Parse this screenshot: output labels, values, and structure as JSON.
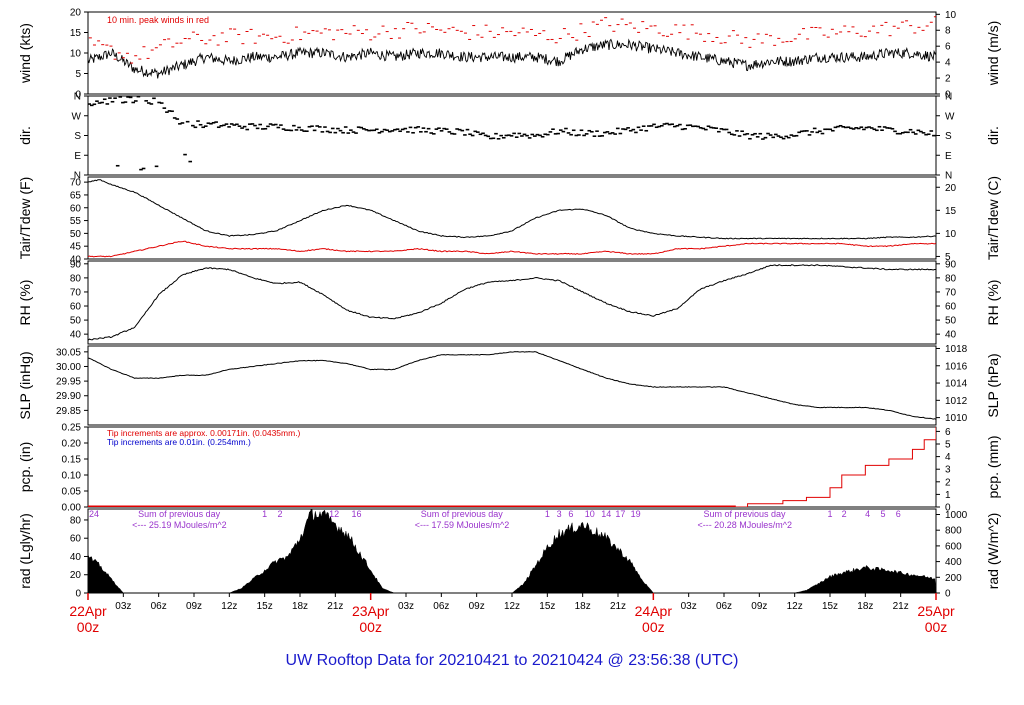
{
  "footer": {
    "title_prefix": "UW Rooftop Data for",
    "start": "20210421",
    "to": "to",
    "end": "20210424",
    "at": "@",
    "time": "23:56:38",
    "tz": "(UTC)"
  },
  "colors": {
    "frame": "#000000",
    "red": "#e00000",
    "blue": "#0000cc",
    "purple": "#9933cc"
  },
  "time_axis": {
    "hour_ticks": [
      "03z",
      "06z",
      "09z",
      "12z",
      "15z",
      "18z",
      "21z"
    ],
    "day_labels": [
      {
        "date": "22Apr",
        "hour": "00z",
        "t": 0
      },
      {
        "date": "23Apr",
        "hour": "00z",
        "t": 24
      },
      {
        "date": "24Apr",
        "hour": "00z",
        "t": 48
      },
      {
        "date": "25Apr",
        "hour": "00z",
        "t": 72
      }
    ],
    "range_hours": [
      0,
      72
    ]
  },
  "chart_data": [
    {
      "type": "line",
      "id": "wind",
      "ylabel_left": "wind (kts)",
      "ylabel_right": "wind (m/s)",
      "ylim": [
        0,
        20
      ],
      "left_ticks": [
        "0",
        "5",
        "10",
        "15",
        "20"
      ],
      "right_ticks": [
        "0",
        "2",
        "4",
        "6",
        "8",
        "10"
      ],
      "annotation": "10 min. peak winds in red",
      "series": [
        {
          "name": "wind",
          "color": "#000000",
          "x": [
            0,
            2,
            4,
            6,
            8,
            10,
            12,
            14,
            16,
            18,
            20,
            22,
            24,
            26,
            28,
            30,
            32,
            34,
            36,
            38,
            40,
            42,
            44,
            46,
            48,
            50,
            52,
            54,
            56,
            58,
            60,
            62,
            64,
            66,
            68,
            70,
            72
          ],
          "y": [
            8,
            10,
            6,
            5,
            7,
            9,
            8,
            9,
            9,
            10,
            10,
            9,
            10,
            9,
            10,
            10,
            9,
            9,
            9,
            9,
            8,
            11,
            12,
            12,
            11,
            10,
            9,
            8,
            7,
            8,
            8,
            9,
            9,
            9,
            10,
            10,
            9
          ]
        },
        {
          "name": "10 min. peak winds",
          "color": "#e00000",
          "x": [
            0,
            4,
            8,
            12,
            16,
            20,
            24,
            28,
            32,
            36,
            40,
            44,
            48,
            52,
            56,
            60,
            64,
            68,
            72
          ],
          "y": [
            12,
            9,
            13,
            14,
            14,
            15,
            15,
            16,
            15,
            15,
            14,
            17,
            16,
            15,
            13,
            14,
            15,
            16,
            17
          ]
        }
      ]
    },
    {
      "type": "scatter",
      "id": "dir",
      "ylabel_left": "dir.",
      "ylabel_right": "dir.",
      "ylim": [
        0,
        360
      ],
      "left_ticks": [
        "N",
        "E",
        "S",
        "W",
        "N"
      ],
      "right_ticks": [
        "N",
        "E",
        "S",
        "W",
        "N"
      ],
      "series": [
        {
          "name": "direction",
          "color": "#000000",
          "x": [
            0,
            2,
            4,
            6,
            8,
            10,
            12,
            14,
            16,
            18,
            20,
            22,
            24,
            26,
            28,
            30,
            32,
            34,
            36,
            38,
            40,
            42,
            44,
            46,
            48,
            50,
            52,
            54,
            56,
            58,
            60,
            62,
            64,
            66,
            68,
            70,
            72
          ],
          "y": [
            320,
            340,
            345,
            335,
            235,
            230,
            225,
            220,
            220,
            215,
            210,
            205,
            205,
            210,
            205,
            200,
            195,
            170,
            185,
            180,
            200,
            190,
            190,
            205,
            220,
            225,
            215,
            200,
            180,
            175,
            185,
            200,
            210,
            215,
            205,
            200,
            185
          ]
        }
      ]
    },
    {
      "type": "line",
      "id": "temp",
      "ylabel_left": "Tair/Tdew (F)",
      "ylabel_right": "Tair/Tdew (C)",
      "ylim": [
        40,
        72
      ],
      "left_ticks": [
        "40",
        "45",
        "50",
        "55",
        "60",
        "65",
        "70"
      ],
      "right_ticks": [
        "5",
        "10",
        "15",
        "20"
      ],
      "series": [
        {
          "name": "Tair",
          "color": "#000000",
          "x": [
            0,
            1,
            2,
            4,
            6,
            8,
            10,
            12,
            14,
            16,
            18,
            20,
            22,
            24,
            26,
            28,
            30,
            32,
            34,
            36,
            38,
            40,
            42,
            44,
            46,
            48,
            50,
            52,
            54,
            56,
            58,
            60,
            62,
            64,
            66,
            68,
            70,
            72
          ],
          "y": [
            70,
            71,
            69,
            66,
            61,
            56,
            51,
            49,
            49.5,
            51,
            55,
            59,
            61,
            59,
            55,
            51,
            49,
            48.5,
            49,
            51,
            56,
            59,
            59.5,
            57,
            52,
            50,
            49,
            48.5,
            48,
            48,
            48,
            48,
            48,
            48,
            48,
            48.5,
            48.5,
            49
          ]
        },
        {
          "name": "Tdew",
          "color": "#e00000",
          "x": [
            0,
            2,
            4,
            6,
            8,
            10,
            12,
            14,
            16,
            18,
            20,
            22,
            24,
            26,
            28,
            30,
            32,
            34,
            36,
            38,
            40,
            42,
            44,
            46,
            48,
            50,
            52,
            54,
            56,
            58,
            60,
            62,
            64,
            66,
            68,
            70,
            72
          ],
          "y": [
            41,
            41,
            43,
            45,
            47,
            45,
            44,
            44,
            44,
            43,
            44,
            43,
            43,
            43,
            44,
            43,
            43,
            42,
            43,
            42,
            42,
            42,
            43,
            42,
            42,
            44,
            44,
            45,
            46,
            46,
            46,
            46,
            46,
            45,
            45,
            46,
            46
          ]
        }
      ]
    },
    {
      "type": "line",
      "id": "rh",
      "ylabel_left": "RH (%)",
      "ylabel_right": "RH (%)",
      "ylim": [
        33,
        92
      ],
      "left_ticks": [
        "40",
        "50",
        "60",
        "70",
        "80",
        "90"
      ],
      "right_ticks": [
        "40",
        "50",
        "60",
        "70",
        "80",
        "90"
      ],
      "series": [
        {
          "name": "RH",
          "color": "#000000",
          "x": [
            0,
            2,
            4,
            6,
            8,
            10,
            12,
            14,
            16,
            18,
            20,
            22,
            24,
            26,
            28,
            30,
            32,
            34,
            36,
            38,
            40,
            42,
            44,
            46,
            48,
            50,
            52,
            54,
            56,
            58,
            60,
            62,
            64,
            66,
            68,
            70,
            72
          ],
          "y": [
            36,
            38,
            45,
            68,
            82,
            87,
            86,
            80,
            76,
            77,
            68,
            57,
            52,
            51,
            55,
            62,
            72,
            77,
            78,
            80,
            78,
            70,
            62,
            56,
            53,
            58,
            72,
            78,
            83,
            89,
            89,
            89,
            88,
            87,
            86,
            86,
            86
          ]
        }
      ]
    },
    {
      "type": "line",
      "id": "slp",
      "ylabel_left": "SLP (inHg)",
      "ylabel_right": "SLP (hPa)",
      "ylim": [
        29.8,
        30.07
      ],
      "left_ticks": [
        "29.85",
        "29.90",
        "29.95",
        "30.00",
        "30.05"
      ],
      "right_ticks": [
        "1010",
        "1012",
        "1014",
        "1016",
        "1018"
      ],
      "series": [
        {
          "name": "SLP",
          "color": "#000000",
          "x": [
            0,
            2,
            4,
            6,
            8,
            10,
            12,
            14,
            16,
            18,
            20,
            22,
            24,
            26,
            28,
            30,
            32,
            34,
            36,
            38,
            40,
            42,
            44,
            46,
            48,
            50,
            52,
            54,
            56,
            58,
            60,
            62,
            64,
            66,
            68,
            70,
            72
          ],
          "y": [
            30.03,
            29.99,
            29.96,
            29.96,
            29.97,
            29.97,
            29.99,
            30.0,
            30.01,
            30.02,
            30.02,
            30.01,
            29.99,
            29.99,
            30.02,
            30.04,
            30.04,
            30.04,
            30.05,
            30.05,
            30.02,
            29.99,
            29.96,
            29.94,
            29.93,
            29.93,
            29.93,
            29.93,
            29.91,
            29.89,
            29.87,
            29.86,
            29.86,
            29.86,
            29.85,
            29.83,
            29.82
          ]
        }
      ]
    },
    {
      "type": "line",
      "id": "pcp",
      "ylabel_left": "pcp. (in)",
      "ylabel_right": "pcp. (mm)",
      "ylim": [
        0,
        0.25
      ],
      "left_ticks": [
        "0.00",
        "0.05",
        "0.10",
        "0.15",
        "0.20",
        "0.25"
      ],
      "right_ticks": [
        "0",
        "1",
        "2",
        "3",
        "4",
        "5",
        "6"
      ],
      "notes": [
        {
          "text": "Tip increments are approx. 0.00171in. (0.0435mm.)",
          "color": "#e00000"
        },
        {
          "text": "Tip increments are 0.01in. (0.254mm.)",
          "color": "#0000cc"
        }
      ],
      "series": [
        {
          "name": "precip",
          "color": "#e00000",
          "x": [
            0,
            55,
            56,
            58,
            59,
            61,
            63,
            64,
            66,
            68,
            70,
            71,
            72
          ],
          "y": [
            0,
            0,
            0.01,
            0.01,
            0.02,
            0.03,
            0.06,
            0.1,
            0.13,
            0.15,
            0.18,
            0.21,
            0.25
          ]
        }
      ]
    },
    {
      "type": "area",
      "id": "rad",
      "ylabel_left": "rad (Lgly/hr)",
      "ylabel_right": "rad (W/m^2)",
      "ylim": [
        0,
        92
      ],
      "left_ticks": [
        "0",
        "20",
        "40",
        "60",
        "80"
      ],
      "right_ticks": [
        "0",
        "200",
        "400",
        "600",
        "800",
        "1000"
      ],
      "daily": [
        {
          "text": "Sum of previous day",
          "value": "<--- 25.19 MJoules/m^2",
          "t": 4
        },
        {
          "text": "Sum of previous day",
          "value": "<--- 17.59 MJoules/m^2",
          "t": 28
        },
        {
          "text": "Sum of previous day",
          "value": "<--- 20.28 MJoules/m^2",
          "t": 52
        }
      ],
      "hour_marks": [
        {
          "label": "24",
          "t": 0
        },
        {
          "label": "1",
          "t": 15
        },
        {
          "label": "2",
          "t": 16.3
        },
        {
          "label": "12",
          "t": 20.9
        },
        {
          "label": "16",
          "t": 22.8
        },
        {
          "label": "1",
          "t": 39
        },
        {
          "label": "3",
          "t": 40
        },
        {
          "label": "6",
          "t": 41
        },
        {
          "label": "10",
          "t": 42.6
        },
        {
          "label": "14",
          "t": 44
        },
        {
          "label": "17",
          "t": 45.2
        },
        {
          "label": "19",
          "t": 46.5
        },
        {
          "label": "1",
          "t": 63
        },
        {
          "label": "2",
          "t": 64.2
        },
        {
          "label": "4",
          "t": 66.2
        },
        {
          "label": "5",
          "t": 67.5
        },
        {
          "label": "6",
          "t": 68.8
        }
      ],
      "series": [
        {
          "name": "radiation",
          "color": "#000000",
          "x": [
            0,
            1,
            2,
            3,
            12,
            13,
            14,
            15,
            16,
            17,
            18,
            19,
            20,
            21,
            22,
            23,
            24,
            25,
            26,
            36,
            37,
            38,
            39,
            40,
            41,
            42,
            43,
            44,
            45,
            46,
            47,
            48,
            60,
            61,
            62,
            63,
            64,
            65,
            66,
            67,
            68,
            69,
            70,
            71,
            72
          ],
          "y": [
            40,
            30,
            15,
            0,
            0,
            5,
            15,
            25,
            35,
            40,
            60,
            88,
            85,
            75,
            65,
            45,
            25,
            5,
            0,
            0,
            10,
            30,
            50,
            65,
            70,
            75,
            68,
            60,
            48,
            35,
            15,
            0,
            0,
            3,
            10,
            18,
            22,
            25,
            28,
            26,
            25,
            22,
            20,
            18,
            15
          ]
        }
      ]
    }
  ]
}
